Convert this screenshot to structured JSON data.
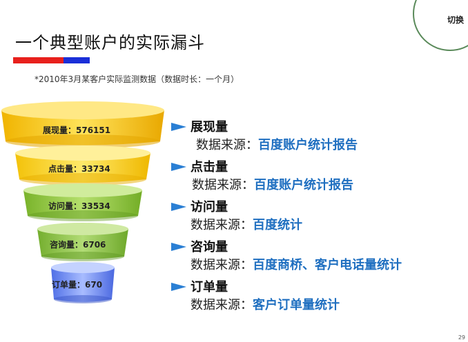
{
  "header": {
    "switch_label": "切换"
  },
  "title": "一个典型账户的实际漏斗",
  "note": "*2010年3月某客户实际监测数据（数据时长：一个月）",
  "source_label": "数据来源：",
  "funnel": [
    {
      "label": "展现量：576151",
      "name": "展现量",
      "value": 576151,
      "source": "百度账户统计报告",
      "color": "#f2c200"
    },
    {
      "label": "点击量：33734",
      "name": "点击量",
      "value": 33734,
      "source": "百度账户统计报告",
      "color": "#f6cf1e"
    },
    {
      "label": "访问量：33534",
      "name": "访问量",
      "value": 33534,
      "source": "百度统计",
      "color": "#8cc63f"
    },
    {
      "label": "咨询量：6706",
      "name": "咨询量",
      "value": 6706,
      "source": "百度商桥、客户电话量统计",
      "color": "#86c24a"
    },
    {
      "label": "订单量：670",
      "name": "订单量",
      "value": 670,
      "source": "客户订单量统计",
      "color": "#6f8ff0"
    }
  ],
  "page_number": "29"
}
